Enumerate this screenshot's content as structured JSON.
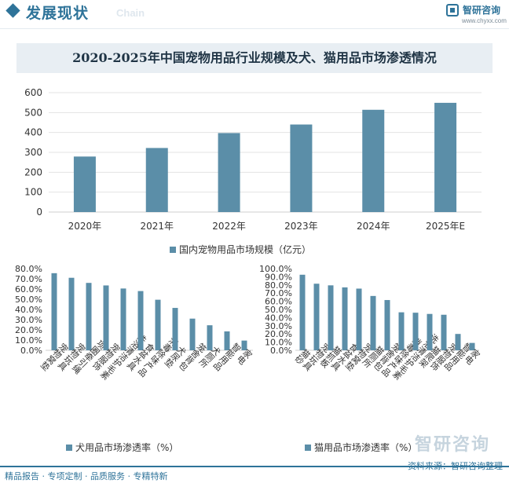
{
  "header": {
    "section_title": "发展现状",
    "section_subtitle": "Chain",
    "brand_name": "智研咨询",
    "brand_url": "www.chyxx.com"
  },
  "footer": {
    "left": "精品报告 · 专项定制 · 品质服务 · 专精特新",
    "source": "资料来源：智研咨询整理",
    "watermark": "智研咨询"
  },
  "colors": {
    "bar": "#5b8ea8",
    "accent": "#2e7399",
    "axis_text": "#333333"
  },
  "chart_data": [
    {
      "type": "bar",
      "title": "2020-2025年中国宠物用品行业规模及犬、猫用品市场渗透情况",
      "categories": [
        "2020年",
        "2021年",
        "2022年",
        "2023年",
        "2024年",
        "2025年E"
      ],
      "series": [
        {
          "name": "国内宠物用品市场规模（亿元）",
          "values": [
            279,
            322,
            397,
            440,
            514,
            549
          ]
        }
      ],
      "yticks": [
        "0",
        "100",
        "200",
        "300",
        "400",
        "500",
        "600"
      ],
      "ylim": [
        0,
        600
      ],
      "legend": "bottom"
    },
    {
      "type": "bar",
      "categories": [
        "宠物窝垫",
        "宠物玩具",
        "项圈牵引绳",
        "宠物服饰",
        "洗浴清洁护毛素",
        "食盆水具",
        "消毒除味产品",
        "犬尿垫",
        "笼舍背包",
        "犬厕所",
        "智能用品",
        "家电"
      ],
      "series": [
        {
          "name": "犬用品市场渗透率（%）",
          "values": [
            75.5,
            71.0,
            66.0,
            63.5,
            60.5,
            58.0,
            49.5,
            41.5,
            31.0,
            24.5,
            18.5,
            9.5
          ]
        }
      ],
      "yticks": [
        "0.0%",
        "10.0%",
        "20.0%",
        "30.0%",
        "40.0%",
        "50.0%",
        "60.0%",
        "70.0%",
        "80.0%"
      ],
      "ylim": [
        0,
        80
      ],
      "legend": "bottom"
    },
    {
      "type": "bar",
      "categories": [
        "猫砂",
        "宠物玩具",
        "猫抓板",
        "食盆水具",
        "宠物窝垫",
        "猫厕所",
        "笼舍背包",
        "消毒除味产品",
        "洗浴清洁护毛素",
        "猫爬架",
        "宠物服饰",
        "智能用品",
        "家电"
      ],
      "series": [
        {
          "name": "猫用品市场渗透率（%）",
          "values": [
            92.5,
            81.5,
            79.5,
            77.0,
            75.5,
            66.5,
            61.5,
            46.5,
            46.0,
            44.5,
            43.5,
            20.0,
            9.0
          ]
        }
      ],
      "yticks": [
        "0.0%",
        "10.0%",
        "20.0%",
        "30.0%",
        "40.0%",
        "50.0%",
        "60.0%",
        "70.0%",
        "80.0%",
        "90.0%",
        "100.0%"
      ],
      "ylim": [
        0,
        100
      ],
      "legend": "bottom"
    }
  ]
}
